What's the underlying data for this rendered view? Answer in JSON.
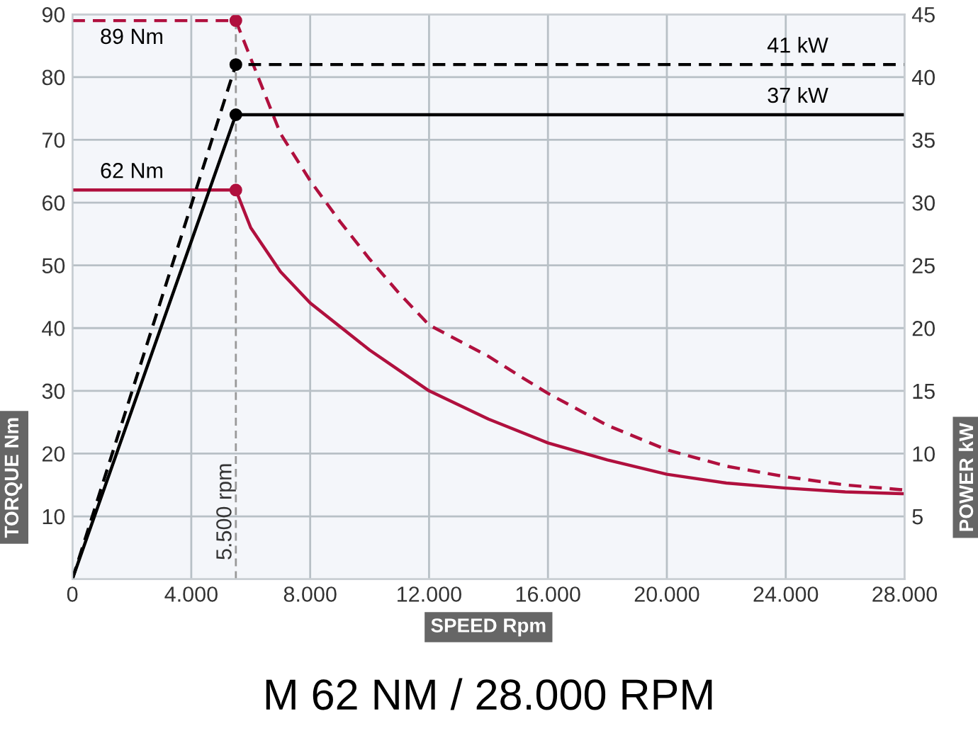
{
  "chart_data": {
    "type": "line",
    "title": "M 62 NM / 28.000 RPM",
    "xlabel": "SPEED Rpm",
    "ylabel": "TORQUE Nm",
    "y2label": "POWER kW",
    "xlim": [
      0,
      28000
    ],
    "xticks": [
      0,
      {
        "value": 4000,
        "label": "4.000"
      },
      {
        "value": 8000,
        "label": "8.000"
      },
      {
        "value": 12000,
        "label": "12.000"
      },
      {
        "value": 16000,
        "label": "16.000"
      },
      {
        "value": 20000,
        "label": "20.000"
      },
      {
        "value": 24000,
        "label": "24.000"
      },
      {
        "value": 28000,
        "label": "28.000"
      }
    ],
    "ylim": [
      0,
      90
    ],
    "yticks": [
      10,
      20,
      30,
      40,
      50,
      60,
      70,
      80,
      90
    ],
    "y2lim": [
      0,
      45
    ],
    "y2ticks": [
      5,
      10,
      15,
      20,
      25,
      30,
      35,
      40,
      45
    ],
    "grid": true,
    "legend": false,
    "series": [
      {
        "name": "89 Nm",
        "color": "#b0103e",
        "line_style": "dashed",
        "x": [
          0,
          5500,
          6500,
          7000,
          8000,
          9000,
          10000,
          11000,
          12000,
          13000,
          14000,
          15000,
          16000,
          18000,
          20000,
          22000,
          24000,
          26000,
          28000
        ],
        "values": [
          89,
          89,
          77,
          71,
          63.5,
          57,
          51,
          45.5,
          40.5,
          38,
          35.5,
          32.5,
          29.6,
          24.5,
          20.6,
          18,
          16.3,
          15,
          14.2
        ]
      },
      {
        "name": "62 Nm",
        "color": "#b0103e",
        "line_style": "solid",
        "x": [
          0,
          5500,
          6000,
          7000,
          8000,
          10000,
          12000,
          14000,
          16000,
          18000,
          20000,
          22000,
          24000,
          26000,
          28000
        ],
        "values": [
          62,
          62,
          56,
          49,
          44,
          36.5,
          30,
          25.5,
          21.7,
          19,
          16.7,
          15.3,
          14.5,
          13.9,
          13.6
        ]
      },
      {
        "name": "41 kW",
        "color": "#000000",
        "line_style": "dashed",
        "axis": "y2",
        "x": [
          0,
          5500,
          28000
        ],
        "values": [
          0,
          41,
          41
        ]
      },
      {
        "name": "37 kW",
        "color": "#000000",
        "line_style": "solid",
        "axis": "y2",
        "x": [
          0,
          5500,
          28000
        ],
        "values": [
          0,
          37,
          37
        ]
      },
      {
        "type": "scatter",
        "color": "#b0103e",
        "marker": "circle",
        "x": [
          5500,
          5500
        ],
        "values": [
          89,
          62
        ]
      },
      {
        "type": "scatter",
        "color": "#000000",
        "marker": "circle",
        "axis": "y2",
        "x": [
          5500,
          5500
        ],
        "values": [
          41,
          37
        ]
      }
    ],
    "ref_lines": [
      {
        "axis": "x",
        "value": 5500,
        "label": "5.500 rpm",
        "color": "#999999",
        "line_style": "dashed"
      }
    ]
  }
}
